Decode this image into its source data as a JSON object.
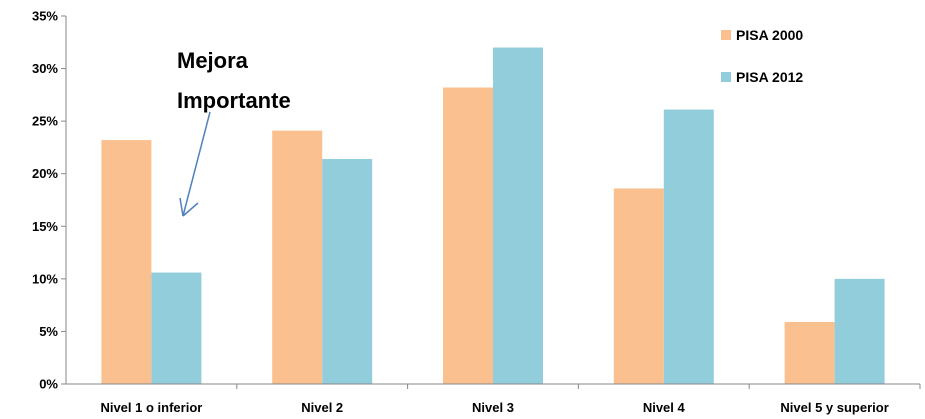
{
  "chart_data": {
    "type": "bar",
    "categories": [
      "Nivel 1 o inferior",
      "Nivel 2",
      "Nivel 3",
      "Nivel 4",
      "Nivel 5 y superior"
    ],
    "series": [
      {
        "name": "PISA 2000",
        "values": [
          23.2,
          24.1,
          28.2,
          18.6,
          5.9
        ]
      },
      {
        "name": "PISA 2012",
        "values": [
          10.6,
          21.4,
          32.0,
          26.1,
          10.0
        ]
      }
    ],
    "ylim": [
      0,
      35
    ],
    "yticks": [
      0,
      5,
      10,
      15,
      20,
      25,
      30,
      35
    ],
    "ytick_labels": [
      "0%",
      "5%",
      "10%",
      "15%",
      "20%",
      "25%",
      "30%",
      "35%"
    ],
    "grid": false,
    "legend": "top-right",
    "colors": [
      "#FAC090",
      "#92CDDC"
    ],
    "annotation": {
      "lines": [
        "Mejora",
        "Importante"
      ],
      "points_to": {
        "category": "Nivel 1 o inferior",
        "series": "PISA 2012"
      }
    }
  }
}
